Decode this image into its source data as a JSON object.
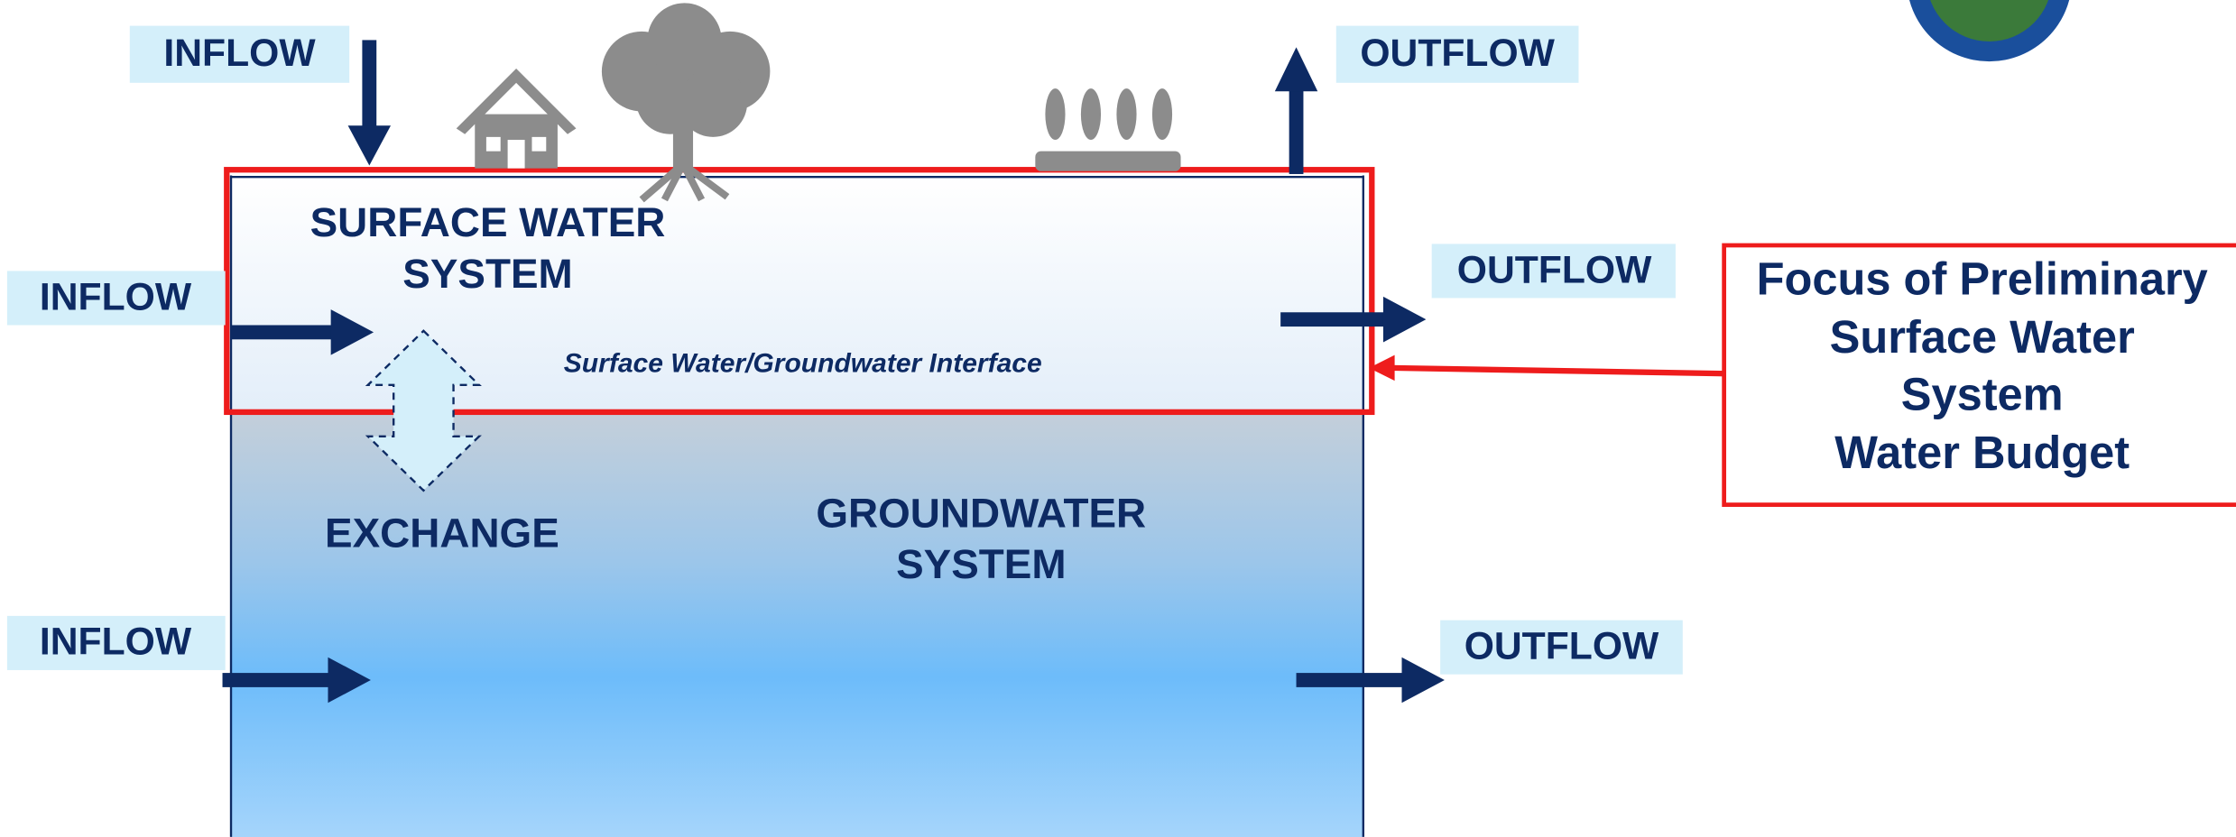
{
  "inflows": [
    "INFLOW",
    "INFLOW",
    "INFLOW"
  ],
  "outflows": [
    "OUTFLOW",
    "OUTFLOW",
    "OUTFLOW"
  ],
  "surface_water": {
    "label_lines": [
      "SURFACE WATER",
      "SYSTEM"
    ],
    "interface": "Surface Water/Groundwater Interface"
  },
  "exchange": "EXCHANGE",
  "groundwater": {
    "label_lines": [
      "GROUNDWATER",
      "SYSTEM"
    ]
  },
  "focus_box": {
    "lines": [
      "Focus of Preliminary",
      "Surface Water",
      "System",
      "Water Budget"
    ]
  }
}
